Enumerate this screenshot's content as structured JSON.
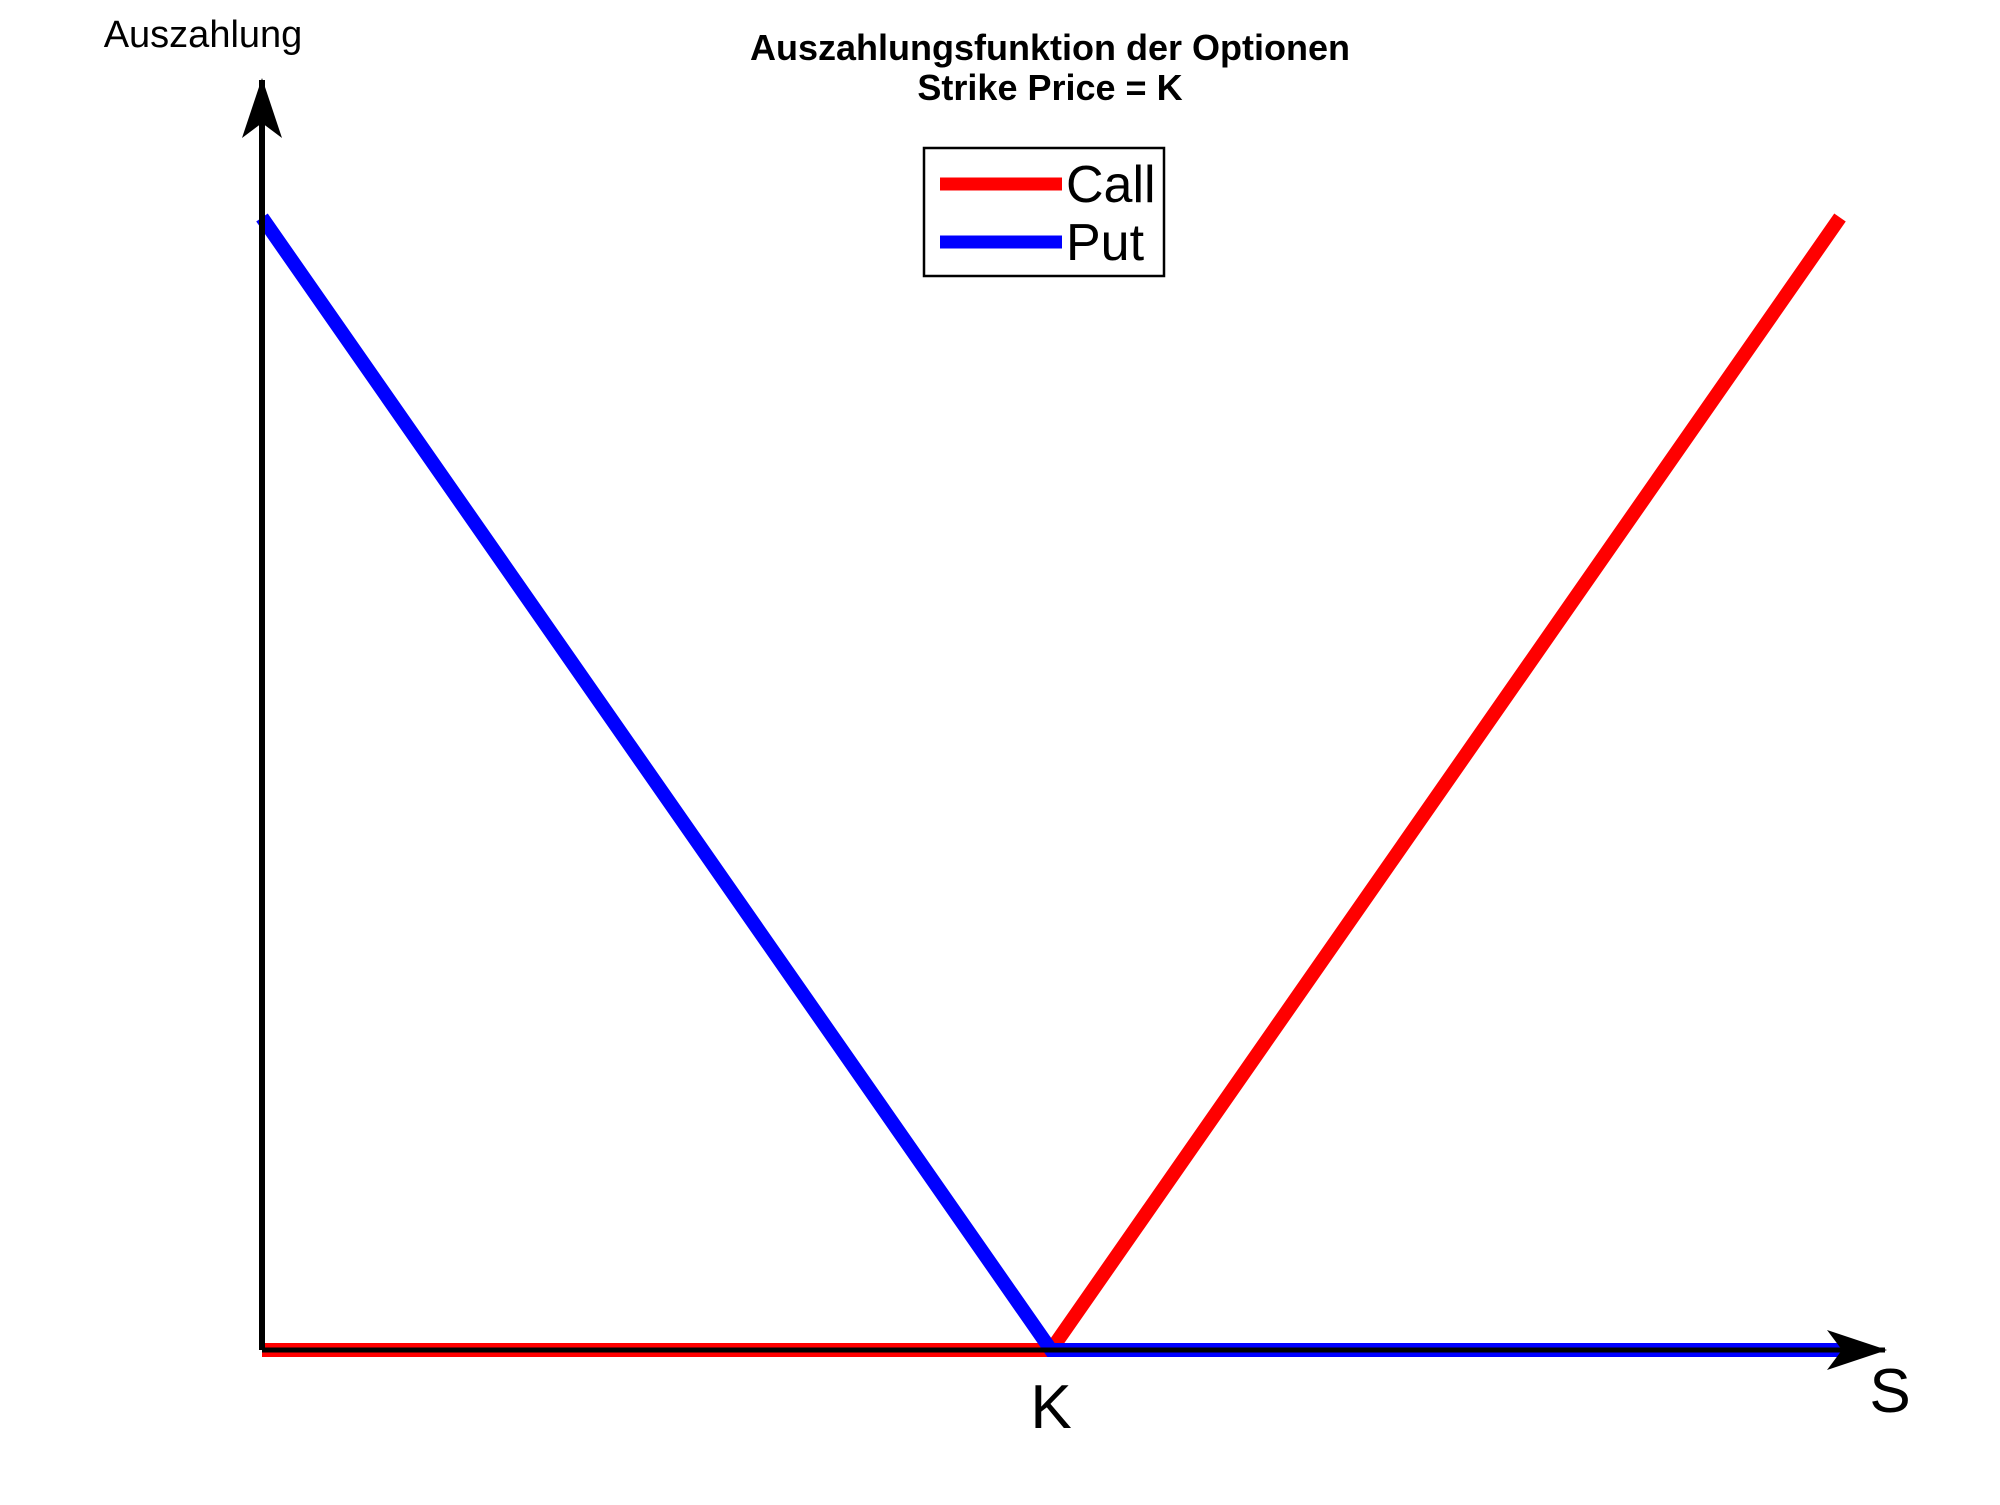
{
  "chart_data": {
    "type": "line",
    "title": "Auszahlungsfunktion der Optionen",
    "subtitle": "Strike Price = K",
    "ylabel": "Auszahlung",
    "xlabel": "S",
    "x_tick_labels": [
      {
        "x": 1,
        "label": "K"
      }
    ],
    "xlim": [
      0,
      2
    ],
    "ylim": [
      0,
      1.2
    ],
    "grid": false,
    "legend_position": "top-center",
    "series": [
      {
        "name": "Call",
        "color": "#ff0000",
        "x": [
          0,
          1,
          2
        ],
        "y": [
          0,
          0,
          1.19
        ]
      },
      {
        "name": "Put",
        "color": "#0000ff",
        "x": [
          0,
          1,
          2
        ],
        "y": [
          1.19,
          0,
          0
        ]
      }
    ]
  }
}
